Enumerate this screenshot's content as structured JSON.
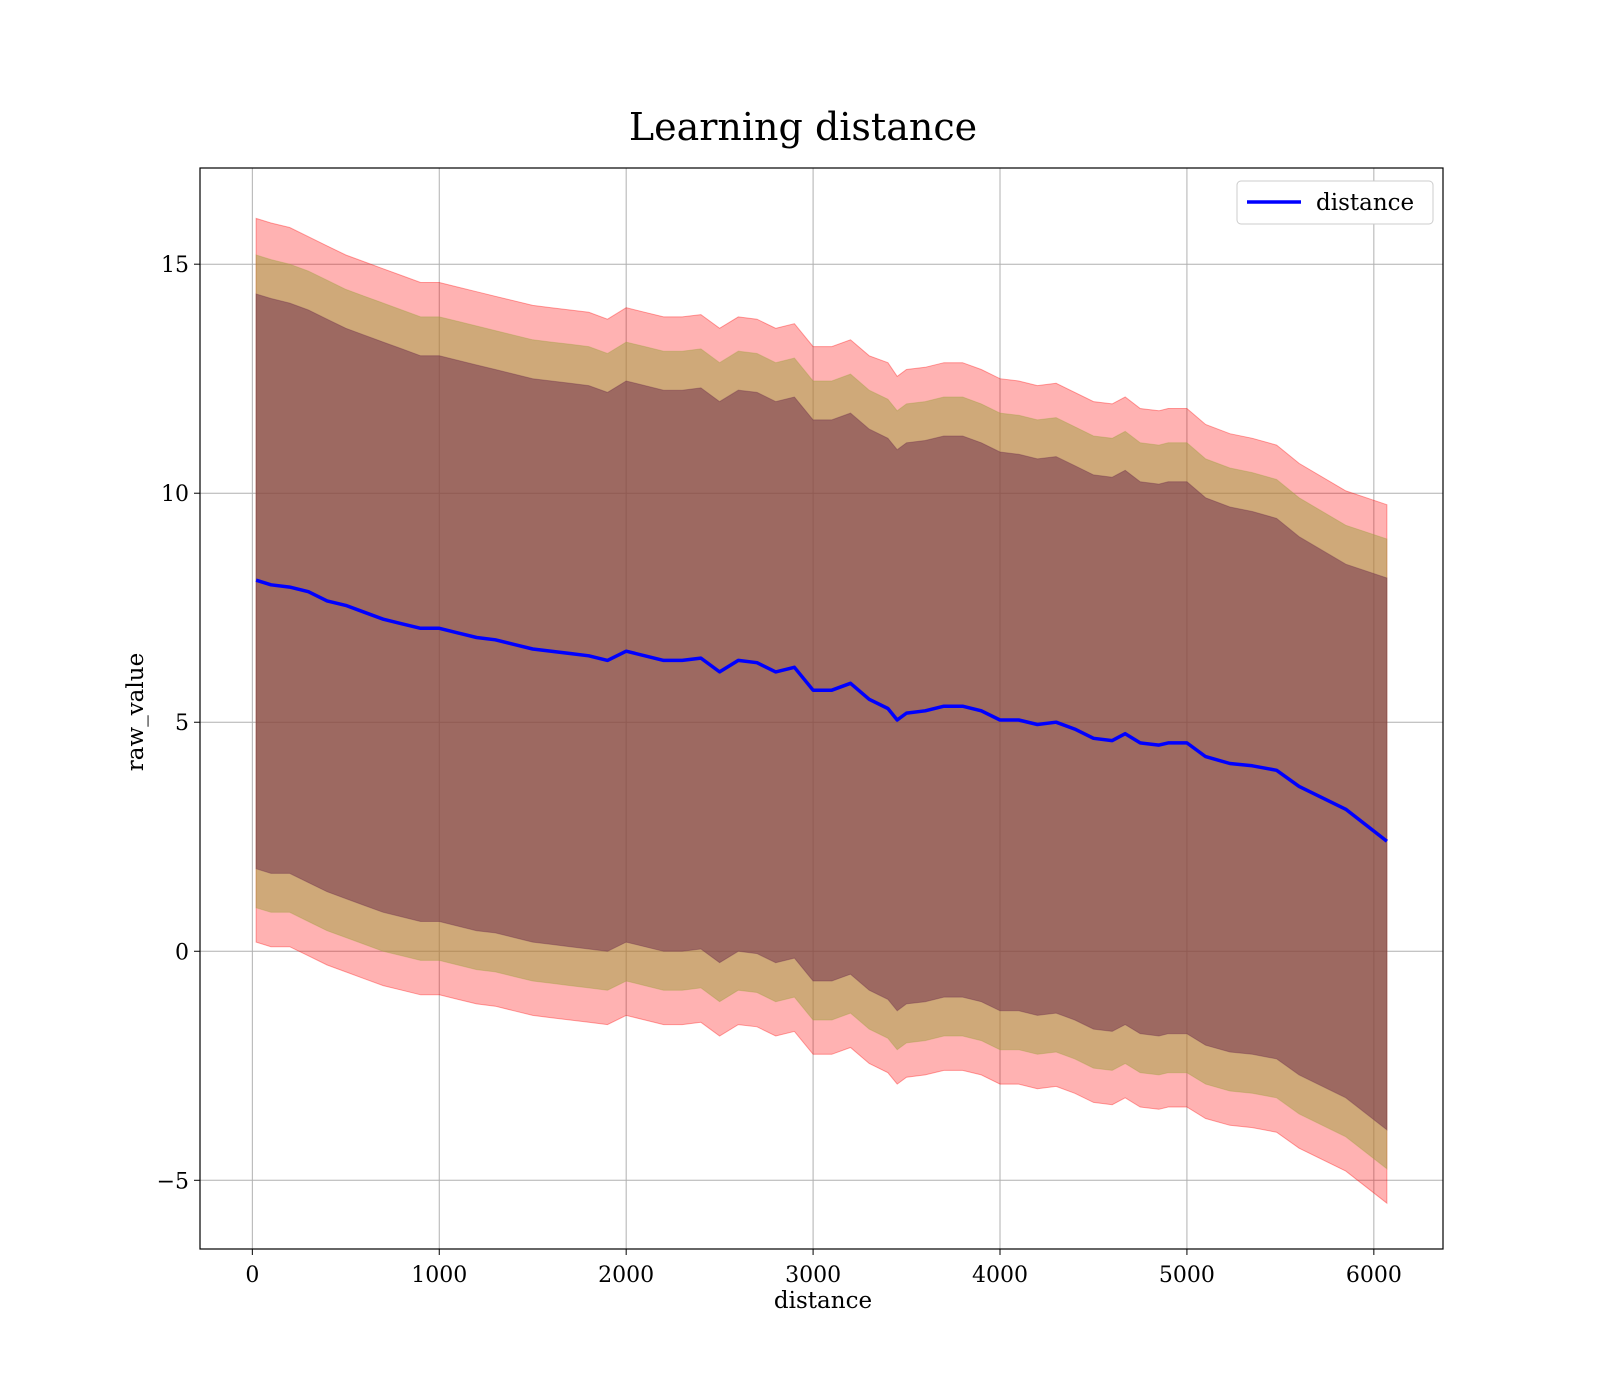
{
  "chart_data": {
    "type": "line",
    "title": "Learning distance",
    "xlabel": "distance",
    "ylabel": "raw_value",
    "xlim": [
      -280,
      6370
    ],
    "ylim": [
      -6.5,
      17.1
    ],
    "x_ticks": [
      0,
      1000,
      2000,
      3000,
      4000,
      5000,
      6000
    ],
    "x_tick_labels": [
      "0",
      "1000",
      "2000",
      "3000",
      "4000",
      "5000",
      "6000"
    ],
    "y_ticks": [
      -5,
      0,
      5,
      10,
      15
    ],
    "y_tick_labels": [
      "−5",
      "0",
      "5",
      "10",
      "15"
    ],
    "grid": true,
    "legend": {
      "position": "top-right",
      "entries": [
        "distance"
      ]
    },
    "colors": {
      "line": "#0000ff",
      "band_outer": "#ff0000",
      "band_middle": "#a0a040",
      "band_inner": "#6b2a4a"
    },
    "x": [
      20,
      100,
      200,
      300,
      400,
      500,
      600,
      700,
      800,
      900,
      1000,
      1100,
      1200,
      1300,
      1400,
      1500,
      1600,
      1700,
      1800,
      1900,
      2000,
      2100,
      2200,
      2300,
      2400,
      2500,
      2600,
      2700,
      2800,
      2900,
      3000,
      3100,
      3200,
      3300,
      3400,
      3450,
      3500,
      3600,
      3700,
      3800,
      3900,
      4000,
      4100,
      4200,
      4300,
      4400,
      4500,
      4600,
      4670,
      4750,
      4850,
      4900,
      5000,
      5100,
      5230,
      5350,
      5480,
      5600,
      5850,
      6070
    ],
    "series": [
      {
        "name": "distance",
        "values": [
          8.1,
          8.0,
          7.95,
          7.85,
          7.65,
          7.55,
          7.4,
          7.25,
          7.15,
          7.05,
          7.05,
          6.95,
          6.85,
          6.8,
          6.7,
          6.6,
          6.55,
          6.5,
          6.45,
          6.35,
          6.55,
          6.45,
          6.35,
          6.35,
          6.4,
          6.1,
          6.35,
          6.3,
          6.1,
          6.2,
          5.7,
          5.7,
          5.85,
          5.5,
          5.3,
          5.05,
          5.2,
          5.25,
          5.35,
          5.35,
          5.25,
          5.05,
          5.05,
          4.95,
          5.0,
          4.85,
          4.65,
          4.6,
          4.75,
          4.55,
          4.5,
          4.55,
          4.55,
          4.25,
          4.1,
          4.05,
          3.95,
          3.6,
          3.1,
          2.4
        ]
      }
    ],
    "bands": [
      {
        "color": "#ff0000",
        "upper": [
          16.0,
          15.9,
          15.8,
          15.6,
          15.4,
          15.2,
          15.05,
          14.9,
          14.75,
          14.6,
          14.6,
          14.5,
          14.4,
          14.3,
          14.2,
          14.1,
          14.05,
          14.0,
          13.95,
          13.8,
          14.05,
          13.95,
          13.85,
          13.85,
          13.9,
          13.6,
          13.85,
          13.8,
          13.6,
          13.7,
          13.2,
          13.2,
          13.35,
          13.0,
          12.85,
          12.55,
          12.7,
          12.75,
          12.85,
          12.85,
          12.7,
          12.5,
          12.45,
          12.35,
          12.4,
          12.2,
          12.0,
          11.95,
          12.1,
          11.85,
          11.8,
          11.85,
          11.85,
          11.5,
          11.3,
          11.2,
          11.05,
          10.65,
          10.05,
          9.75
        ],
        "lower": [
          0.2,
          0.1,
          0.1,
          -0.1,
          -0.3,
          -0.45,
          -0.6,
          -0.75,
          -0.85,
          -0.95,
          -0.95,
          -1.05,
          -1.15,
          -1.2,
          -1.3,
          -1.4,
          -1.45,
          -1.5,
          -1.55,
          -1.6,
          -1.4,
          -1.5,
          -1.6,
          -1.6,
          -1.55,
          -1.85,
          -1.6,
          -1.65,
          -1.85,
          -1.75,
          -2.25,
          -2.25,
          -2.1,
          -2.45,
          -2.65,
          -2.9,
          -2.75,
          -2.7,
          -2.6,
          -2.6,
          -2.7,
          -2.9,
          -2.9,
          -3.0,
          -2.95,
          -3.1,
          -3.3,
          -3.35,
          -3.2,
          -3.4,
          -3.45,
          -3.4,
          -3.4,
          -3.65,
          -3.8,
          -3.85,
          -3.95,
          -4.3,
          -4.8,
          -5.5
        ]
      },
      {
        "color": "#a0a040",
        "upper": [
          15.2,
          15.1,
          15.0,
          14.85,
          14.65,
          14.45,
          14.3,
          14.15,
          14.0,
          13.85,
          13.85,
          13.75,
          13.65,
          13.55,
          13.45,
          13.35,
          13.3,
          13.25,
          13.2,
          13.05,
          13.3,
          13.2,
          13.1,
          13.1,
          13.15,
          12.85,
          13.1,
          13.05,
          12.85,
          12.95,
          12.45,
          12.45,
          12.6,
          12.25,
          12.05,
          11.8,
          11.95,
          12.0,
          12.1,
          12.1,
          11.95,
          11.75,
          11.7,
          11.6,
          11.65,
          11.45,
          11.25,
          11.2,
          11.35,
          11.1,
          11.05,
          11.1,
          11.1,
          10.75,
          10.55,
          10.45,
          10.3,
          9.9,
          9.3,
          9.0
        ],
        "lower": [
          0.95,
          0.85,
          0.85,
          0.65,
          0.45,
          0.3,
          0.15,
          0.0,
          -0.1,
          -0.2,
          -0.2,
          -0.3,
          -0.4,
          -0.45,
          -0.55,
          -0.65,
          -0.7,
          -0.75,
          -0.8,
          -0.85,
          -0.65,
          -0.75,
          -0.85,
          -0.85,
          -0.8,
          -1.1,
          -0.85,
          -0.9,
          -1.1,
          -1.0,
          -1.5,
          -1.5,
          -1.35,
          -1.7,
          -1.9,
          -2.15,
          -2.0,
          -1.95,
          -1.85,
          -1.85,
          -1.95,
          -2.15,
          -2.15,
          -2.25,
          -2.2,
          -2.35,
          -2.55,
          -2.6,
          -2.45,
          -2.65,
          -2.7,
          -2.65,
          -2.65,
          -2.9,
          -3.05,
          -3.1,
          -3.2,
          -3.55,
          -4.05,
          -4.75
        ]
      },
      {
        "color": "#6b2a4a",
        "upper": [
          14.35,
          14.25,
          14.15,
          14.0,
          13.8,
          13.6,
          13.45,
          13.3,
          13.15,
          13.0,
          13.0,
          12.9,
          12.8,
          12.7,
          12.6,
          12.5,
          12.45,
          12.4,
          12.35,
          12.2,
          12.45,
          12.35,
          12.25,
          12.25,
          12.3,
          12.0,
          12.25,
          12.2,
          12.0,
          12.1,
          11.6,
          11.6,
          11.75,
          11.4,
          11.2,
          10.95,
          11.1,
          11.15,
          11.25,
          11.25,
          11.1,
          10.9,
          10.85,
          10.75,
          10.8,
          10.6,
          10.4,
          10.35,
          10.5,
          10.25,
          10.2,
          10.25,
          10.25,
          9.9,
          9.7,
          9.6,
          9.45,
          9.05,
          8.45,
          8.15
        ],
        "lower": [
          1.8,
          1.7,
          1.7,
          1.5,
          1.3,
          1.15,
          1.0,
          0.85,
          0.75,
          0.65,
          0.65,
          0.55,
          0.45,
          0.4,
          0.3,
          0.2,
          0.15,
          0.1,
          0.05,
          0.0,
          0.2,
          0.1,
          0.0,
          0.0,
          0.05,
          -0.25,
          0.0,
          -0.05,
          -0.25,
          -0.15,
          -0.65,
          -0.65,
          -0.5,
          -0.85,
          -1.05,
          -1.3,
          -1.15,
          -1.1,
          -1.0,
          -1.0,
          -1.1,
          -1.3,
          -1.3,
          -1.4,
          -1.35,
          -1.5,
          -1.7,
          -1.75,
          -1.6,
          -1.8,
          -1.85,
          -1.8,
          -1.8,
          -2.05,
          -2.2,
          -2.25,
          -2.35,
          -2.7,
          -3.2,
          -3.9
        ]
      }
    ]
  }
}
